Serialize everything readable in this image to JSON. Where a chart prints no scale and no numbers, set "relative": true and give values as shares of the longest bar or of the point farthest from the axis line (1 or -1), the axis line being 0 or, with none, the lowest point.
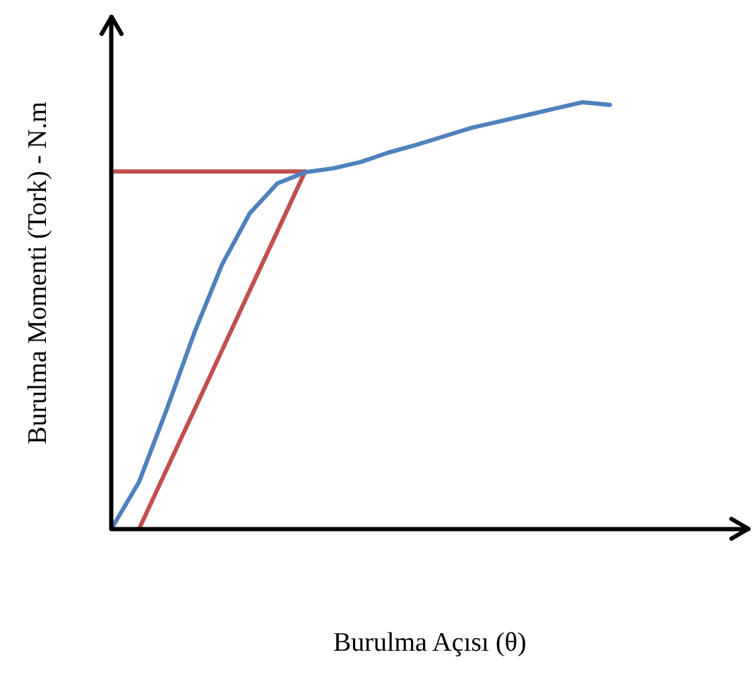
{
  "chart_data": {
    "type": "line",
    "xlabel": "Burulma Açısı (θ)",
    "ylabel": "Burulma Momenti (Tork) - N.m",
    "relative": true,
    "grid": false,
    "legend": false,
    "marker": "none",
    "line_style": "solid",
    "categories": [
      null,
      null,
      null,
      null,
      null,
      null,
      null,
      null,
      null,
      null,
      null,
      null,
      null,
      null,
      null,
      null,
      null,
      null,
      null,
      null,
      null,
      null,
      null,
      null
    ],
    "series": [
      {
        "color": "#4f81bd",
        "values": [
          0,
          0.11,
          0.28,
          0.46,
          0.62,
          0.74,
          0.81,
          0.836,
          0.845,
          0.86,
          0.882,
          0.9,
          0.92,
          0.94,
          0.955,
          0.97,
          0.985,
          1,
          0.994,
          null,
          null,
          null,
          null,
          null
        ]
      },
      {
        "color": "#c0504d",
        "values": [
          0.838,
          0.838,
          0.838,
          0.838,
          0.838,
          0.838,
          0.838,
          0.838,
          null,
          null,
          null,
          null,
          null,
          null,
          null,
          null,
          null,
          null,
          null,
          null,
          null,
          null,
          null,
          null
        ]
      },
      {
        "color": "#c0504d",
        "values": [
          null,
          0,
          0.14,
          0.279,
          0.419,
          0.559,
          0.698,
          0.838,
          null,
          null,
          null,
          null,
          null,
          null,
          null,
          null,
          null,
          null,
          null,
          null,
          null,
          null,
          null,
          null
        ]
      }
    ]
  }
}
